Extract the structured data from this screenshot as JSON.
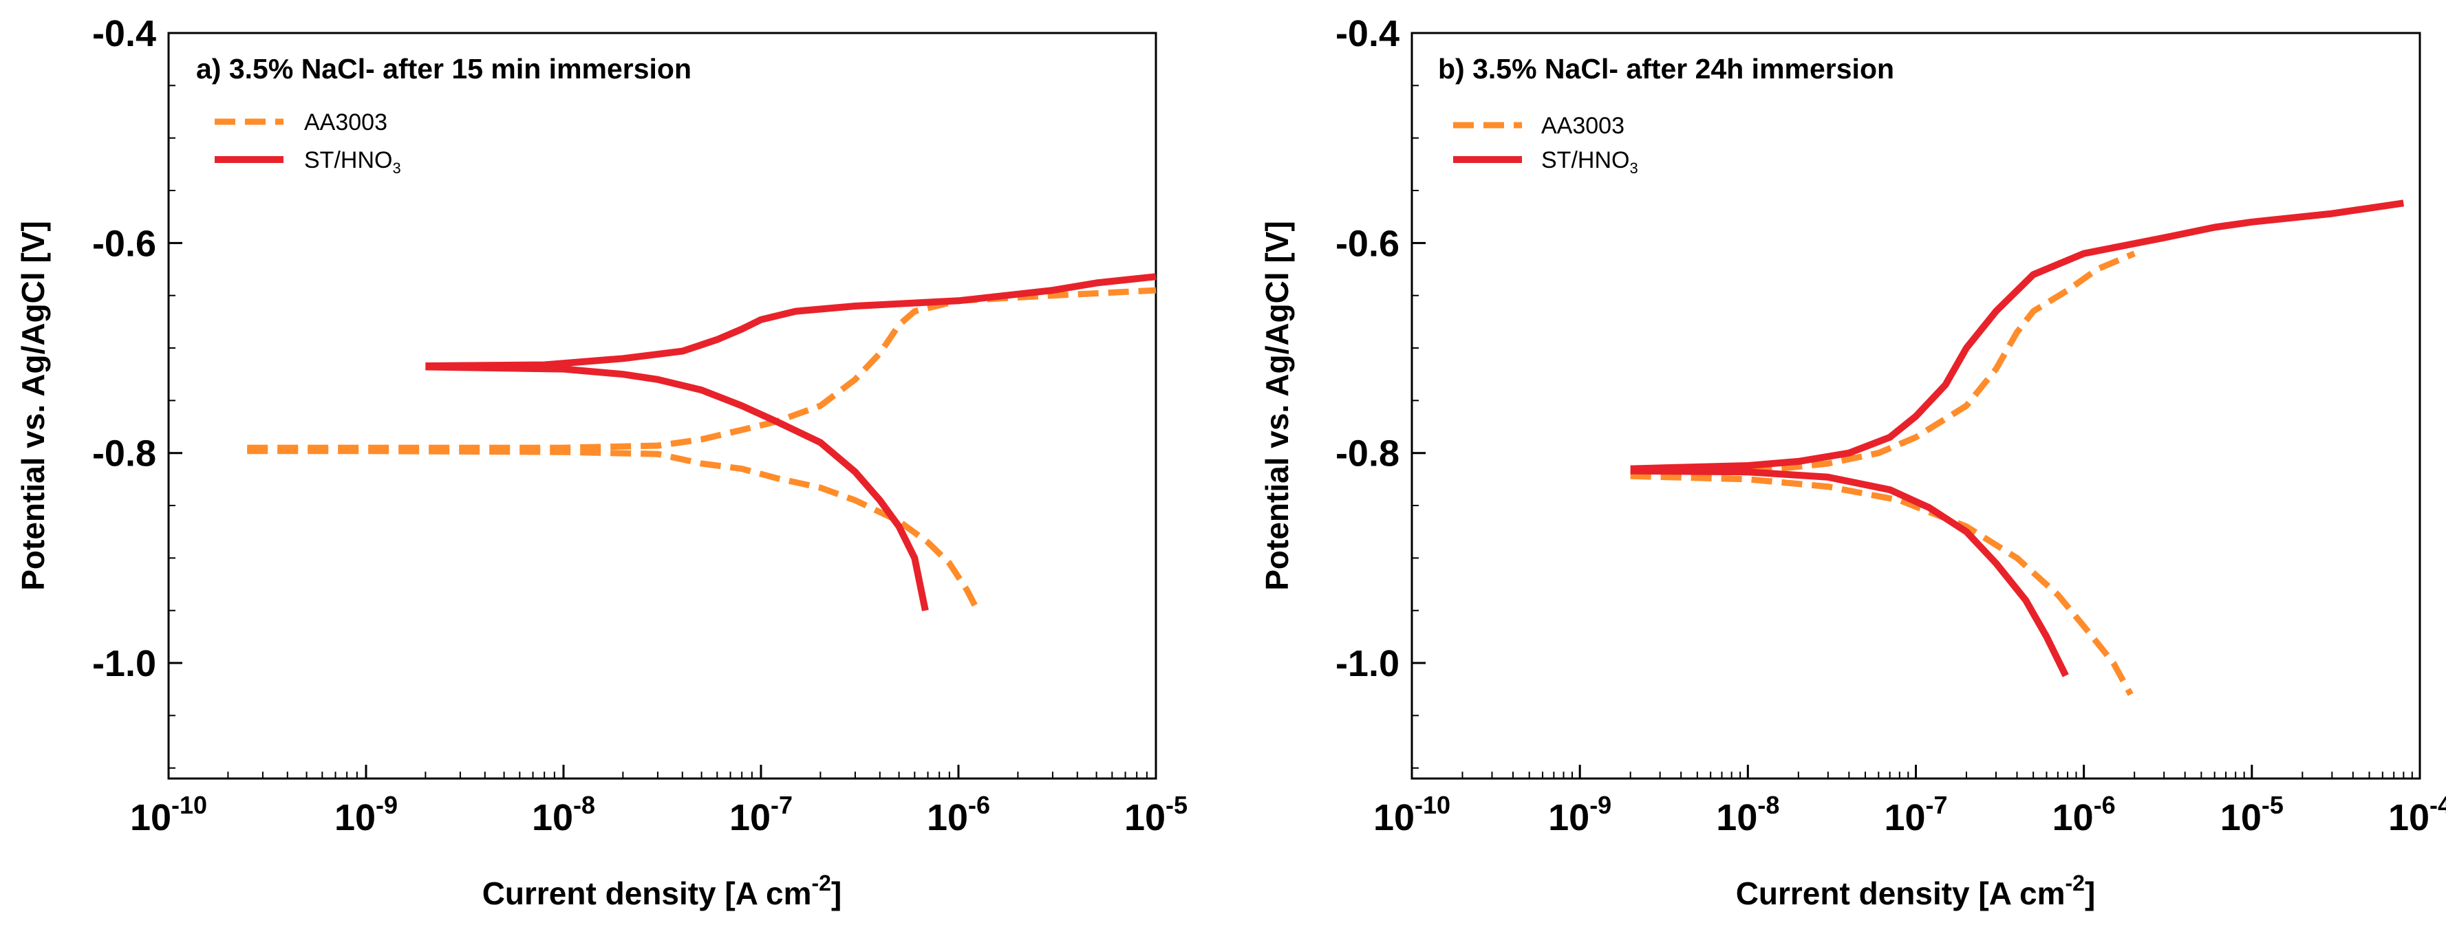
{
  "chart_data": [
    {
      "type": "line",
      "title": "a) 3.5% NaCl- after 15 min immersion",
      "xlabel": "Current density [A cm",
      "xlabel_sup": "-2",
      "xlabel_end": "]",
      "ylabel": "Potential vs. Ag/AgCl [V]",
      "x_scale": "log",
      "xlim": [
        1e-10,
        1e-05
      ],
      "ylim": [
        -1.11,
        -0.4
      ],
      "x_ticks": [
        {
          "base": "10",
          "exp": "-10",
          "value": 1e-10
        },
        {
          "base": "10",
          "exp": "-9",
          "value": 1e-09
        },
        {
          "base": "10",
          "exp": "-8",
          "value": 1e-08
        },
        {
          "base": "10",
          "exp": "-7",
          "value": 1e-07
        },
        {
          "base": "10",
          "exp": "-6",
          "value": 1e-06
        },
        {
          "base": "10",
          "exp": "-5",
          "value": 1e-05
        }
      ],
      "y_ticks": [
        {
          "label": "-0.4",
          "value": -0.4
        },
        {
          "label": "-0.6",
          "value": -0.6
        },
        {
          "label": "-0.8",
          "value": -0.8
        },
        {
          "label": "-1.0",
          "value": -1.0
        }
      ],
      "legend": "top-left",
      "series": [
        {
          "name": "AA3003",
          "legend_label": "AA3003",
          "color": "#ff8c2a",
          "dash": "dashed",
          "branches": [
            [
              [
                2.5e-10,
                -0.795
              ],
              [
                1e-09,
                -0.795
              ],
              [
                1e-08,
                -0.795
              ],
              [
                3e-08,
                -0.793
              ],
              [
                5e-08,
                -0.787
              ],
              [
                8e-08,
                -0.778
              ],
              [
                1.2e-07,
                -0.77
              ],
              [
                2e-07,
                -0.755
              ],
              [
                3e-07,
                -0.73
              ],
              [
                4e-07,
                -0.705
              ],
              [
                5e-07,
                -0.678
              ],
              [
                6e-07,
                -0.665
              ],
              [
                1e-06,
                -0.655
              ],
              [
                3e-06,
                -0.65
              ],
              [
                1e-05,
                -0.645
              ]
            ],
            [
              [
                2.5e-10,
                -0.798
              ],
              [
                1e-09,
                -0.798
              ],
              [
                1e-08,
                -0.799
              ],
              [
                3e-08,
                -0.801
              ],
              [
                5e-08,
                -0.81
              ],
              [
                8e-08,
                -0.815
              ],
              [
                1.2e-07,
                -0.824
              ],
              [
                2e-07,
                -0.833
              ],
              [
                3e-07,
                -0.845
              ],
              [
                5e-07,
                -0.865
              ],
              [
                7e-07,
                -0.885
              ],
              [
                9e-07,
                -0.905
              ],
              [
                1.1e-06,
                -0.93
              ],
              [
                1.25e-06,
                -0.95
              ]
            ]
          ]
        },
        {
          "name": "ST/HNO3",
          "legend_label": "ST/HNO",
          "legend_sub": "3",
          "color": "#e8222a",
          "dash": "solid",
          "branches": [
            [
              [
                2e-09,
                -0.717
              ],
              [
                8e-09,
                -0.716
              ],
              [
                2e-08,
                -0.71
              ],
              [
                4e-08,
                -0.703
              ],
              [
                6e-08,
                -0.692
              ],
              [
                8e-08,
                -0.682
              ],
              [
                1e-07,
                -0.673
              ],
              [
                1.5e-07,
                -0.665
              ],
              [
                3e-07,
                -0.66
              ],
              [
                1e-06,
                -0.655
              ],
              [
                3e-06,
                -0.645
              ],
              [
                5e-06,
                -0.638
              ],
              [
                1e-05,
                -0.632
              ]
            ],
            [
              [
                2e-09,
                -0.718
              ],
              [
                1e-08,
                -0.72
              ],
              [
                2e-08,
                -0.725
              ],
              [
                3e-08,
                -0.73
              ],
              [
                5e-08,
                -0.74
              ],
              [
                8e-08,
                -0.755
              ],
              [
                1.2e-07,
                -0.77
              ],
              [
                2e-07,
                -0.79
              ],
              [
                3e-07,
                -0.818
              ],
              [
                4e-07,
                -0.845
              ],
              [
                5e-07,
                -0.87
              ],
              [
                6e-07,
                -0.9
              ],
              [
                6.8e-07,
                -0.95
              ]
            ]
          ]
        }
      ]
    },
    {
      "type": "line",
      "title": "b) 3.5% NaCl- after 24h immersion",
      "xlabel": "Current density [A cm",
      "xlabel_sup": "-2",
      "xlabel_end": "]",
      "ylabel": "Potential vs. Ag/AgCl [V]",
      "x_scale": "log",
      "xlim": [
        1e-10,
        0.0001
      ],
      "ylim": [
        -1.11,
        -0.4
      ],
      "x_ticks": [
        {
          "base": "10",
          "exp": "-10",
          "value": 1e-10
        },
        {
          "base": "10",
          "exp": "-9",
          "value": 1e-09
        },
        {
          "base": "10",
          "exp": "-8",
          "value": 1e-08
        },
        {
          "base": "10",
          "exp": "-7",
          "value": 1e-07
        },
        {
          "base": "10",
          "exp": "-6",
          "value": 1e-06
        },
        {
          "base": "10",
          "exp": "-5",
          "value": 1e-05
        },
        {
          "base": "10",
          "exp": "-4",
          "value": 0.0001
        }
      ],
      "y_ticks": [
        {
          "label": "-0.4",
          "value": -0.4
        },
        {
          "label": "-0.6",
          "value": -0.6
        },
        {
          "label": "-0.8",
          "value": -0.8
        },
        {
          "label": "-1.0",
          "value": -1.0
        }
      ],
      "legend": "top-left",
      "series": [
        {
          "name": "AA3003",
          "legend_label": "AA3003",
          "color": "#ff8c2a",
          "dash": "dashed",
          "branches": [
            [
              [
                2e-09,
                -0.82
              ],
              [
                1e-08,
                -0.818
              ],
              [
                3e-08,
                -0.81
              ],
              [
                6e-08,
                -0.8
              ],
              [
                1e-07,
                -0.785
              ],
              [
                2e-07,
                -0.755
              ],
              [
                3e-07,
                -0.72
              ],
              [
                4e-07,
                -0.685
              ],
              [
                5e-07,
                -0.665
              ],
              [
                8e-07,
                -0.645
              ],
              [
                1.2e-06,
                -0.625
              ],
              [
                2e-06,
                -0.61
              ]
            ],
            [
              [
                2e-09,
                -0.822
              ],
              [
                1e-08,
                -0.825
              ],
              [
                3e-08,
                -0.832
              ],
              [
                8e-08,
                -0.845
              ],
              [
                2e-07,
                -0.87
              ],
              [
                4e-07,
                -0.9
              ],
              [
                7e-07,
                -0.935
              ],
              [
                1e-06,
                -0.965
              ],
              [
                1.5e-06,
                -1.0
              ],
              [
                1.9e-06,
                -1.03
              ]
            ]
          ]
        },
        {
          "name": "ST/HNO3",
          "legend_label": "ST/HNO",
          "legend_sub": "3",
          "color": "#e8222a",
          "dash": "solid",
          "branches": [
            [
              [
                2e-09,
                -0.815
              ],
              [
                1e-08,
                -0.812
              ],
              [
                2e-08,
                -0.808
              ],
              [
                4e-08,
                -0.8
              ],
              [
                7e-08,
                -0.785
              ],
              [
                1e-07,
                -0.765
              ],
              [
                1.5e-07,
                -0.735
              ],
              [
                2e-07,
                -0.7
              ],
              [
                3e-07,
                -0.665
              ],
              [
                5e-07,
                -0.63
              ],
              [
                1e-06,
                -0.61
              ],
              [
                3e-06,
                -0.595
              ],
              [
                6e-06,
                -0.585
              ],
              [
                1e-05,
                -0.58
              ],
              [
                3e-05,
                -0.572
              ],
              [
                8e-05,
                -0.562
              ]
            ],
            [
              [
                2e-09,
                -0.817
              ],
              [
                1e-08,
                -0.818
              ],
              [
                3e-08,
                -0.823
              ],
              [
                7e-08,
                -0.835
              ],
              [
                1.2e-07,
                -0.852
              ],
              [
                2e-07,
                -0.875
              ],
              [
                3e-07,
                -0.905
              ],
              [
                4.5e-07,
                -0.94
              ],
              [
                6e-07,
                -0.975
              ],
              [
                7.8e-07,
                -1.012
              ]
            ]
          ]
        }
      ]
    }
  ]
}
